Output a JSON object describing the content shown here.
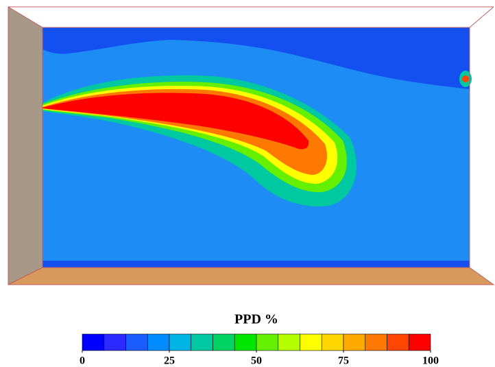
{
  "chart_data": {
    "type": "colorbar",
    "title": "PPD %",
    "colors": [
      "#0000ff",
      "#2b2bff",
      "#1a5cff",
      "#008cff",
      "#00b4e6",
      "#00c8a0",
      "#00d264",
      "#00e600",
      "#64f000",
      "#b4ff00",
      "#ffff00",
      "#ffd700",
      "#ffaa00",
      "#ff7800",
      "#ff4600",
      "#ff0000"
    ],
    "clim": [
      0,
      100
    ],
    "ticks": [
      0,
      25,
      50,
      75,
      100
    ]
  }
}
